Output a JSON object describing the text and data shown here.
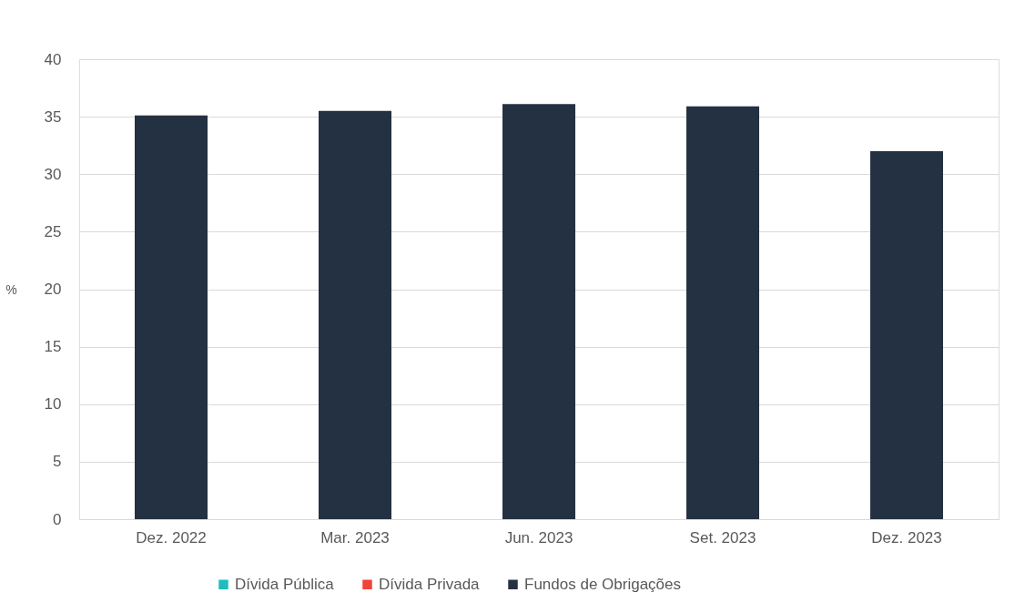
{
  "chart_data": {
    "type": "bar",
    "ylabel": "%",
    "categories": [
      "Dez. 2022",
      "Mar. 2023",
      "Jun. 2023",
      "Set. 2023",
      "Dez. 2023"
    ],
    "series": [
      {
        "name": "Dívida Pública",
        "color": "#1fbcbc",
        "values": [
          null,
          null,
          null,
          null,
          null
        ]
      },
      {
        "name": "Dívida Privada",
        "color": "#f0443a",
        "values": [
          null,
          null,
          null,
          null,
          null
        ]
      },
      {
        "name": "Fundos de Obrigações",
        "color": "#243142",
        "values": [
          35.1,
          35.5,
          36.1,
          35.9,
          32.0
        ]
      }
    ],
    "ylim": [
      0,
      40
    ],
    "yticks": [
      0,
      5,
      10,
      15,
      20,
      25,
      30,
      35,
      40
    ],
    "grid": "y",
    "legend": "bottom"
  }
}
